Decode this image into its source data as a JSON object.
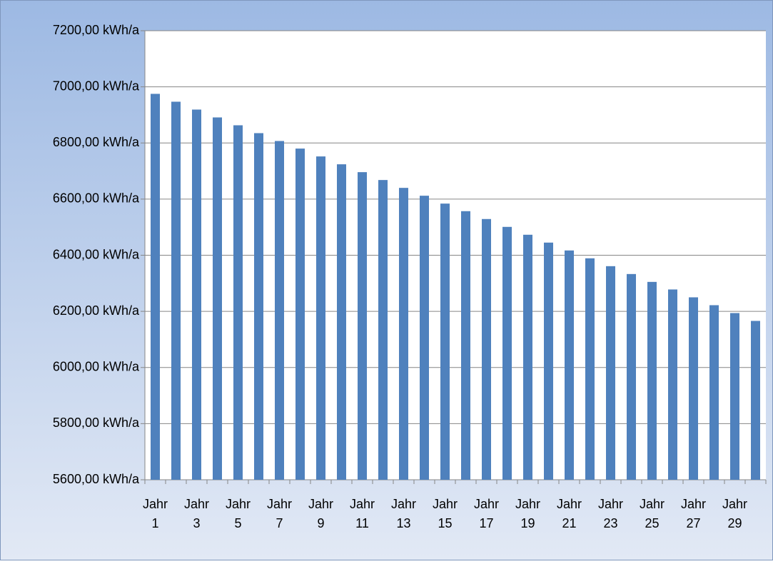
{
  "chart_data": {
    "type": "bar",
    "color": "#4f81bd",
    "grid": true,
    "categories": [
      "Jahr 1",
      null,
      "Jahr 3",
      null,
      "Jahr 5",
      null,
      "Jahr 7",
      null,
      "Jahr 9",
      null,
      "Jahr 11",
      null,
      "Jahr 13",
      null,
      "Jahr 15",
      null,
      "Jahr 17",
      null,
      "Jahr 19",
      null,
      "Jahr 21",
      null,
      "Jahr 23",
      null,
      "Jahr 25",
      null,
      "Jahr 27",
      null,
      "Jahr 29",
      null
    ],
    "values": [
      6975,
      6947,
      6919,
      6891,
      6863,
      6835,
      6807,
      6780,
      6752,
      6724,
      6696,
      6668,
      6640,
      6612,
      6584,
      6557,
      6529,
      6501,
      6473,
      6445,
      6417,
      6389,
      6361,
      6333,
      6305,
      6278,
      6250,
      6222,
      6194,
      6166
    ],
    "ylim": [
      5600,
      7200
    ],
    "yticks": [
      {
        "value": 5600,
        "label": "5600,00 kWh/a"
      },
      {
        "value": 5800,
        "label": "5800,00 kWh/a"
      },
      {
        "value": 6000,
        "label": "6000,00 kWh/a"
      },
      {
        "value": 6200,
        "label": "6200,00 kWh/a"
      },
      {
        "value": 6400,
        "label": "6400,00 kWh/a"
      },
      {
        "value": 6600,
        "label": "6600,00 kWh/a"
      },
      {
        "value": 6800,
        "label": "6800,00 kWh/a"
      },
      {
        "value": 7000,
        "label": "7000,00 kWh/a"
      },
      {
        "value": 7200,
        "label": "7200,00 kWh/a"
      }
    ]
  }
}
